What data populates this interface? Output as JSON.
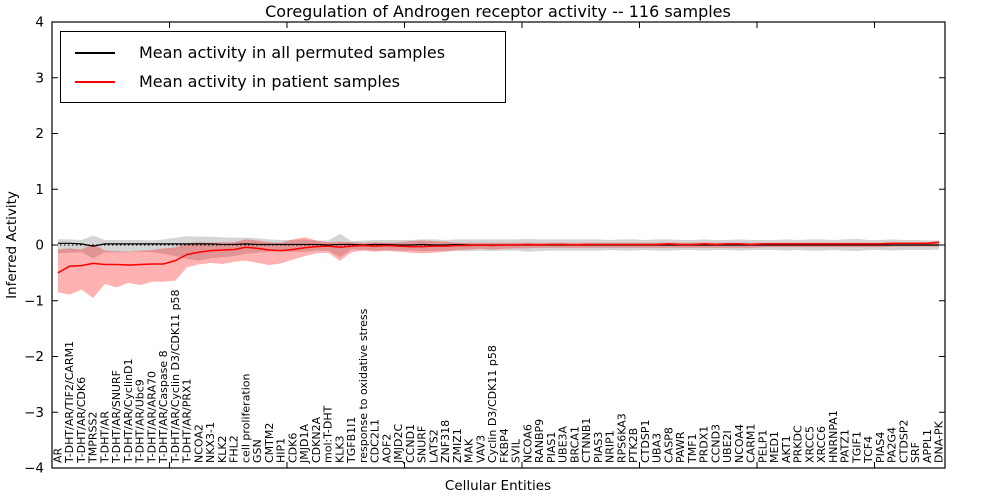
{
  "chart_data": {
    "type": "line",
    "title": "Coregulation of Androgen receptor activity -- 116 samples",
    "xlabel": "Cellular Entities",
    "ylabel": "Inferred Activity",
    "ylim": [
      -4,
      4
    ],
    "xlim": [
      0,
      76
    ],
    "grid": false,
    "legend_position": "upper-left",
    "yticks": [
      {
        "v": 4,
        "label": "4"
      },
      {
        "v": 3,
        "label": "3"
      },
      {
        "v": 2,
        "label": "2"
      },
      {
        "v": 1,
        "label": "1"
      },
      {
        "v": 0,
        "label": "0"
      },
      {
        "v": -1,
        "label": "−1"
      },
      {
        "v": -2,
        "label": "−2"
      },
      {
        "v": -3,
        "label": "−3"
      },
      {
        "v": -4,
        "label": "−4"
      }
    ],
    "xtick_positions": [
      10,
      20,
      30,
      40,
      50,
      60,
      70
    ],
    "categories": [
      "AR",
      "T-DHT/AR/TIF2/CARM1",
      "T-DHT/AR/CDK6",
      "TMPRSS2",
      "T-DHT/AR",
      "T-DHT/AR/SNURF",
      "T-DHT/AR/CyclinD1",
      "T-DHT/AR/Ubc9",
      "T-DHT/AR/ARA70",
      "T-DHT/AR/Caspase 8",
      "T-DHT/AR/Cyclin D3/CDK11 p58",
      "T-DHT/AR/PRX1",
      "NCOA2",
      "NKX3-1",
      "KLK2",
      "FHL2",
      "cell proliferation",
      "GSN",
      "CMTM2",
      "HIP1",
      "CDK6",
      "JMJD1A",
      "CDKN2A",
      "mol:T-DHT",
      "KLK3",
      "TGFB1I1",
      "response to oxidative stress",
      "CDC2L1",
      "AOF2",
      "JMJD2C",
      "CCND1",
      "SNURF",
      "LATS2",
      "ZNF318",
      "ZMIZ1",
      "MAK",
      "VAV3",
      "Cyclin D3/CDK11 p58",
      "FKBP4",
      "SVIL",
      "NCOA6",
      "RANBP9",
      "PIAS1",
      "UBE3A",
      "BRCA1",
      "CTNNB1",
      "PIAS3",
      "NRIP1",
      "RPS6KA3",
      "PTK2B",
      "CTDSP1",
      "UBA3",
      "CASP8",
      "PAWR",
      "TMF1",
      "PRDX1",
      "CCND3",
      "UBE2I",
      "NCOA4",
      "CARM1",
      "PELP1",
      "MED1",
      "AKT1",
      "PRKDC",
      "XRCC5",
      "XRCC6",
      "HNRNPA1",
      "PATZ1",
      "TGIF1",
      "TCF4",
      "PIAS4",
      "PA2G4",
      "CTDSP2",
      "SRF",
      "APPL1",
      "DNA-PK"
    ],
    "zero_line": {
      "value": 0,
      "style": "dotted",
      "color": "#000000"
    },
    "series": [
      {
        "name": "Mean activity in all permuted samples",
        "color": "#000000",
        "values": [
          0.03,
          0.03,
          0.02,
          -0.02,
          0.02,
          0.02,
          0.02,
          0.02,
          0.02,
          0.02,
          0.02,
          0.02,
          0.02,
          0.02,
          0.01,
          0.01,
          0.02,
          0.01,
          0.01,
          0.01,
          0.01,
          0.01,
          0.01,
          0.0,
          0.01,
          0.01,
          0.0,
          0.01,
          0.01,
          0.0,
          0.0,
          0.01,
          0.0,
          0.0,
          0.01,
          0.0,
          0.0,
          0.0,
          0.0,
          0.0,
          0.0,
          0.0,
          0.0,
          0.0,
          0.0,
          0.0,
          0.0,
          0.0,
          0.0,
          0.0,
          0.0,
          0.0,
          0.0,
          0.0,
          0.0,
          0.0,
          0.0,
          0.0,
          0.0,
          0.0,
          0.0,
          0.0,
          0.0,
          0.0,
          0.0,
          0.0,
          0.0,
          0.0,
          0.0,
          0.0,
          0.0,
          0.0,
          0.0,
          0.0,
          0.0,
          0.0
        ]
      },
      {
        "name": "Mean activity in patient samples",
        "color": "#ff0000",
        "values": [
          -0.5,
          -0.38,
          -0.37,
          -0.33,
          -0.35,
          -0.35,
          -0.36,
          -0.35,
          -0.34,
          -0.34,
          -0.28,
          -0.17,
          -0.13,
          -0.1,
          -0.09,
          -0.08,
          -0.04,
          -0.06,
          -0.09,
          -0.1,
          -0.08,
          -0.05,
          -0.03,
          -0.02,
          -0.04,
          -0.02,
          -0.01,
          -0.02,
          -0.01,
          -0.02,
          -0.03,
          -0.03,
          -0.02,
          -0.02,
          -0.01,
          -0.01,
          0.0,
          -0.01,
          0.0,
          0.0,
          0.01,
          0.0,
          0.01,
          0.01,
          0.0,
          0.01,
          0.01,
          0.01,
          0.01,
          0.01,
          0.01,
          0.01,
          0.02,
          0.01,
          0.01,
          0.02,
          0.01,
          0.02,
          0.02,
          0.01,
          0.02,
          0.02,
          0.02,
          0.02,
          0.02,
          0.02,
          0.02,
          0.02,
          0.02,
          0.02,
          0.02,
          0.03,
          0.03,
          0.03,
          0.03,
          0.05
        ]
      }
    ],
    "bands": [
      {
        "name": "permuted-samples-band",
        "color": "#888888",
        "opacity": 0.35,
        "upper": [
          0.1,
          0.1,
          0.09,
          0.17,
          0.09,
          0.09,
          0.09,
          0.09,
          0.08,
          0.1,
          0.13,
          0.16,
          0.15,
          0.15,
          0.14,
          0.13,
          0.13,
          0.12,
          0.1,
          0.09,
          0.09,
          0.1,
          0.08,
          0.08,
          0.2,
          0.07,
          0.08,
          0.09,
          0.09,
          0.09,
          0.09,
          0.1,
          0.1,
          0.09,
          0.1,
          0.1,
          0.1,
          0.1,
          0.1,
          0.1,
          0.11,
          0.1,
          0.1,
          0.1,
          0.1,
          0.1,
          0.1,
          0.09,
          0.1,
          0.1,
          0.09,
          0.1,
          0.1,
          0.09,
          0.09,
          0.1,
          0.09,
          0.09,
          0.1,
          0.09,
          0.09,
          0.09,
          0.1,
          0.09,
          0.1,
          0.1,
          0.09,
          0.1,
          0.11,
          0.09,
          0.09,
          0.1,
          0.09,
          0.09,
          0.08,
          0.08
        ],
        "lower": [
          -0.15,
          -0.14,
          -0.13,
          -0.24,
          -0.13,
          -0.13,
          -0.13,
          -0.12,
          -0.13,
          -0.16,
          -0.2,
          -0.25,
          -0.28,
          -0.24,
          -0.22,
          -0.2,
          -0.16,
          -0.14,
          -0.12,
          -0.12,
          -0.12,
          -0.12,
          -0.1,
          -0.1,
          -0.22,
          -0.08,
          -0.09,
          -0.1,
          -0.1,
          -0.1,
          -0.1,
          -0.11,
          -0.11,
          -0.1,
          -0.11,
          -0.11,
          -0.1,
          -0.11,
          -0.1,
          -0.1,
          -0.12,
          -0.11,
          -0.1,
          -0.1,
          -0.1,
          -0.1,
          -0.1,
          -0.09,
          -0.1,
          -0.1,
          -0.09,
          -0.1,
          -0.1,
          -0.09,
          -0.09,
          -0.1,
          -0.09,
          -0.09,
          -0.1,
          -0.09,
          -0.09,
          -0.09,
          -0.1,
          -0.09,
          -0.1,
          -0.1,
          -0.09,
          -0.1,
          -0.11,
          -0.09,
          -0.09,
          -0.1,
          -0.09,
          -0.09,
          -0.09,
          -0.08
        ]
      },
      {
        "name": "patient-samples-band",
        "color": "#ff0000",
        "opacity": 0.3,
        "upper": [
          -0.08,
          -0.06,
          -0.08,
          0.02,
          -0.1,
          -0.11,
          -0.12,
          -0.1,
          -0.09,
          -0.06,
          -0.04,
          0.03,
          0.05,
          0.04,
          0.05,
          0.05,
          0.1,
          0.08,
          0.05,
          0.04,
          0.1,
          0.14,
          0.08,
          0.05,
          0.06,
          0.05,
          0.04,
          0.05,
          0.04,
          0.05,
          0.07,
          0.08,
          0.07,
          0.06,
          0.04,
          0.04,
          0.04,
          0.04,
          0.04,
          0.04,
          0.04,
          0.04,
          0.04,
          0.04,
          0.04,
          0.04,
          0.04,
          0.04,
          0.04,
          0.04,
          0.04,
          0.04,
          0.04,
          0.04,
          0.04,
          0.04,
          0.04,
          0.04,
          0.04,
          0.04,
          0.04,
          0.04,
          0.04,
          0.04,
          0.04,
          0.04,
          0.04,
          0.04,
          0.04,
          0.04,
          0.04,
          0.05,
          0.05,
          0.05,
          0.05,
          0.07
        ],
        "lower": [
          -0.85,
          -0.89,
          -0.8,
          -0.95,
          -0.7,
          -0.76,
          -0.68,
          -0.72,
          -0.66,
          -0.66,
          -0.64,
          -0.4,
          -0.35,
          -0.32,
          -0.34,
          -0.3,
          -0.28,
          -0.32,
          -0.36,
          -0.33,
          -0.26,
          -0.2,
          -0.15,
          -0.14,
          -0.28,
          -0.13,
          -0.1,
          -0.12,
          -0.1,
          -0.12,
          -0.14,
          -0.15,
          -0.14,
          -0.12,
          -0.09,
          -0.08,
          -0.07,
          -0.08,
          -0.07,
          -0.06,
          -0.06,
          -0.05,
          -0.05,
          -0.05,
          -0.05,
          -0.05,
          -0.05,
          -0.05,
          -0.05,
          -0.05,
          -0.05,
          -0.05,
          -0.05,
          -0.05,
          -0.05,
          -0.05,
          -0.05,
          -0.05,
          -0.05,
          -0.05,
          -0.04,
          -0.04,
          -0.04,
          -0.04,
          -0.04,
          -0.04,
          -0.04,
          -0.04,
          -0.04,
          -0.04,
          -0.04,
          -0.03,
          -0.03,
          -0.03,
          -0.03,
          -0.03
        ]
      }
    ]
  }
}
